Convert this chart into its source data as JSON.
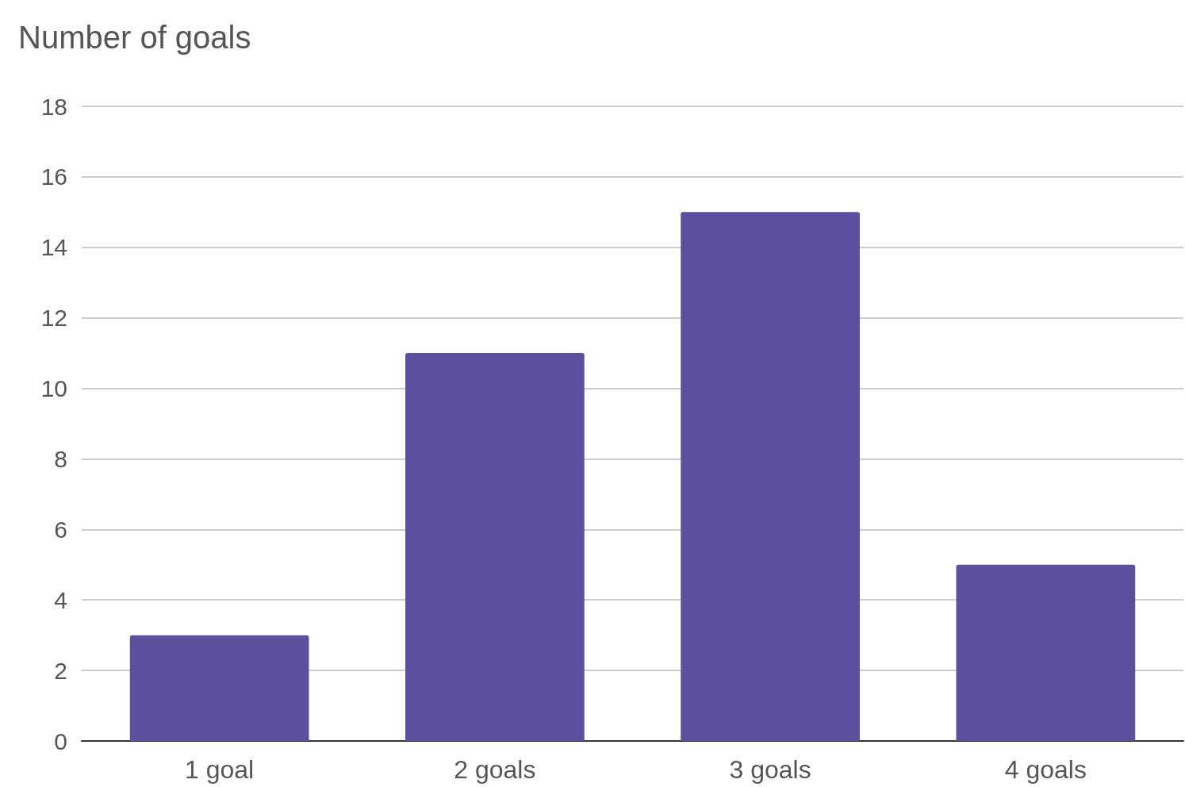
{
  "chart_data": {
    "type": "bar",
    "title": "Number of goals",
    "categories": [
      "1 goal",
      "2 goals",
      "3 goals",
      "4 goals"
    ],
    "values": [
      3,
      11,
      15,
      5
    ],
    "color": "#5e4e9e",
    "ylim": [
      0,
      18
    ],
    "yticks": [
      0,
      2,
      4,
      6,
      8,
      10,
      12,
      14,
      16,
      18
    ],
    "grid": "y"
  }
}
